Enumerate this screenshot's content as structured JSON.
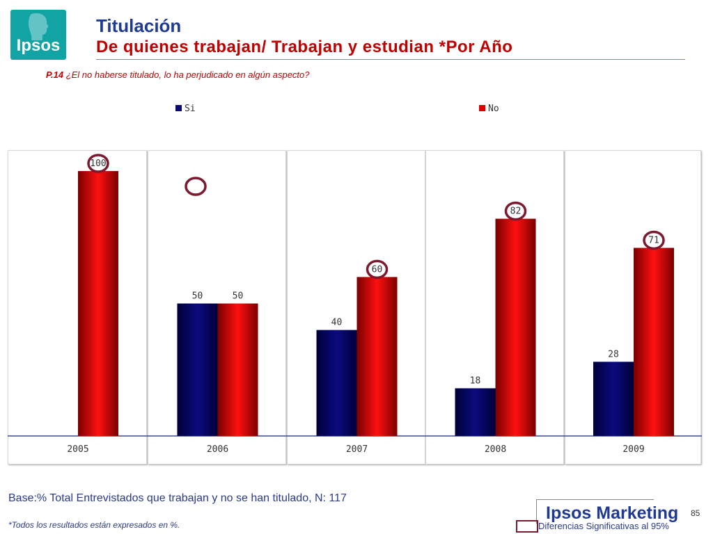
{
  "header": {
    "title": "Titulación",
    "subtitle": "De quienes trabajan/ Trabajan y estudian *Por Año",
    "question_code": "P.14",
    "question_text": " ¿El no haberse titulado, lo ha perjudicado en algún aspecto?"
  },
  "logo": {
    "text": "Ipsos"
  },
  "legend": {
    "items": [
      "Si",
      "No"
    ]
  },
  "chart_data": {
    "type": "bar",
    "categories": [
      "2005",
      "2006",
      "2007",
      "2008",
      "2009"
    ],
    "series": [
      {
        "name": "Si",
        "values": [
          null,
          50,
          40,
          18,
          28
        ],
        "color": "#0a0a6e"
      },
      {
        "name": "No",
        "values": [
          100,
          50,
          60,
          82,
          71
        ],
        "color": "#e00000"
      }
    ],
    "significant_markers": [
      {
        "category": "2005",
        "series": "No"
      },
      {
        "category": "2006",
        "series": "Si"
      },
      {
        "category": "2008",
        "series": "No"
      },
      {
        "category": "2007",
        "series": "No"
      },
      {
        "category": "2009",
        "series": "No"
      }
    ],
    "ylim": [
      0,
      100
    ],
    "grid": false,
    "legend_position": "top"
  },
  "footer": {
    "base": "Base:% Total Entrevistados que  trabajan y no se han titulado, N: 117",
    "note": "*Todos los resultados están expresados en %.",
    "brand": "Ipsos Marketing",
    "page": "85",
    "significance_label": "Diferencias Significativas al 95%"
  }
}
